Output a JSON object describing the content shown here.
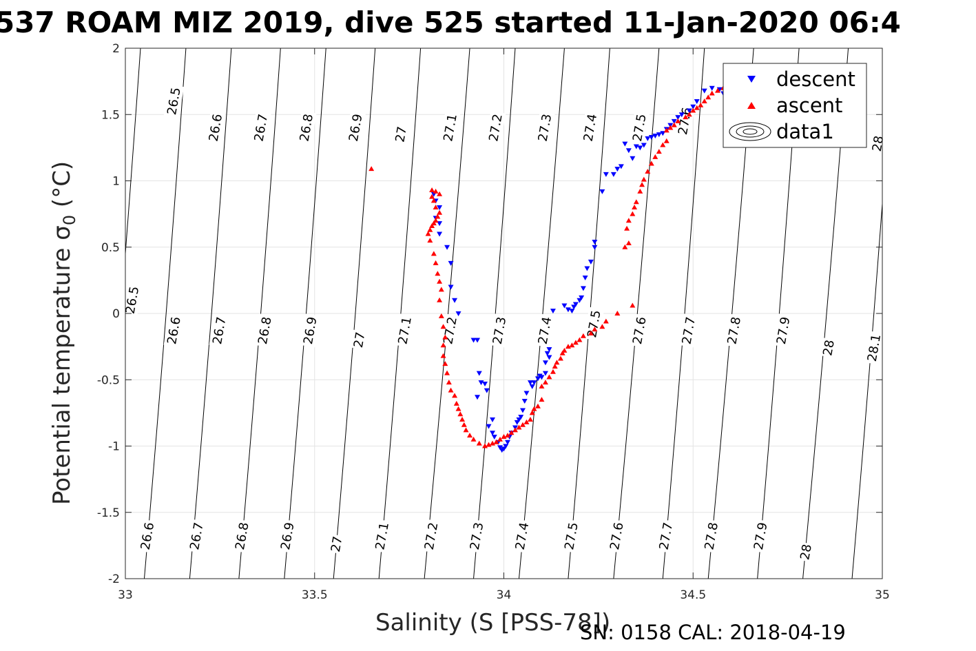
{
  "chart_data": {
    "type": "scatter",
    "title": "537 ROAM MIZ 2019, dive 525 started 11-Jan-2020 06:4",
    "xlabel": "Salinity (S [PSS-78])",
    "ylabel_main": "Potential temperature ",
    "ylabel_sigma": "σ",
    "ylabel_sub": "0",
    "ylabel_unit": " (°C)",
    "footer": "SN: 0158  CAL: 2018-04-19",
    "xlim": [
      33,
      35
    ],
    "ylim": [
      -2,
      2
    ],
    "grid": true,
    "legend_position": "top-right",
    "x_ticks": [
      {
        "value": 33,
        "label": "33"
      },
      {
        "value": 33.5,
        "label": "33.5"
      },
      {
        "value": 34,
        "label": "34"
      },
      {
        "value": 34.5,
        "label": "34.5"
      },
      {
        "value": 35,
        "label": "35"
      }
    ],
    "y_ticks": [
      {
        "value": 2,
        "label": "2"
      },
      {
        "value": 1.5,
        "label": "1.5"
      },
      {
        "value": 1,
        "label": "1"
      },
      {
        "value": 0.5,
        "label": "0.5"
      },
      {
        "value": 0,
        "label": "0"
      },
      {
        "value": -0.5,
        "label": "-0.5"
      },
      {
        "value": -1,
        "label": "-1"
      },
      {
        "value": -1.5,
        "label": "-1.5"
      },
      {
        "value": -2,
        "label": "-2"
      }
    ],
    "contours": [
      {
        "level": "26.5",
        "x_top": 33.04,
        "x_bottom": 32.93
      },
      {
        "level": "26.6",
        "x_top": 33.16,
        "x_bottom": 33.05
      },
      {
        "level": "26.7",
        "x_top": 33.28,
        "x_bottom": 33.17
      },
      {
        "level": "26.8",
        "x_top": 33.41,
        "x_bottom": 33.3
      },
      {
        "level": "26.9",
        "x_top": 33.53,
        "x_bottom": 33.42
      },
      {
        "level": "27",
        "x_top": 33.66,
        "x_bottom": 33.55
      },
      {
        "level": "27.1",
        "x_top": 33.78,
        "x_bottom": 33.67
      },
      {
        "level": "27.2",
        "x_top": 33.91,
        "x_bottom": 33.79
      },
      {
        "level": "27.3",
        "x_top": 34.03,
        "x_bottom": 33.92
      },
      {
        "level": "27.4",
        "x_top": 34.16,
        "x_bottom": 34.04
      },
      {
        "level": "27.5",
        "x_top": 34.28,
        "x_bottom": 34.17
      },
      {
        "level": "27.6",
        "x_top": 34.41,
        "x_bottom": 34.29
      },
      {
        "level": "27.7",
        "x_top": 34.53,
        "x_bottom": 34.42
      },
      {
        "level": "27.8",
        "x_top": 34.66,
        "x_bottom": 34.54
      },
      {
        "level": "27.9",
        "x_top": 34.78,
        "x_bottom": 34.67
      },
      {
        "level": "28",
        "x_top": 34.91,
        "x_bottom": 34.79
      },
      {
        "level": "28.1",
        "x_top": 35.03,
        "x_bottom": 34.92
      }
    ],
    "contour_labels": [
      {
        "text": "26.5",
        "x": 33.13,
        "y": 1.6
      },
      {
        "text": "26.6",
        "x": 33.24,
        "y": 1.4
      },
      {
        "text": "26.7",
        "x": 33.36,
        "y": 1.4
      },
      {
        "text": "26.8",
        "x": 33.48,
        "y": 1.4
      },
      {
        "text": "26.9",
        "x": 33.61,
        "y": 1.4
      },
      {
        "text": "27",
        "x": 33.73,
        "y": 1.35
      },
      {
        "text": "27.1",
        "x": 33.86,
        "y": 1.4
      },
      {
        "text": "27.2",
        "x": 33.98,
        "y": 1.4
      },
      {
        "text": "27.3",
        "x": 34.11,
        "y": 1.4
      },
      {
        "text": "27.4",
        "x": 34.23,
        "y": 1.4
      },
      {
        "text": "27.5",
        "x": 34.36,
        "y": 1.4
      },
      {
        "text": "27.6",
        "x": 34.48,
        "y": 1.45
      },
      {
        "text": "28",
        "x": 34.99,
        "y": 1.28
      },
      {
        "text": "26.5",
        "x": 33.02,
        "y": 0.1
      },
      {
        "text": "26.6",
        "x": 33.13,
        "y": -0.13
      },
      {
        "text": "26.7",
        "x": 33.25,
        "y": -0.13
      },
      {
        "text": "26.8",
        "x": 33.37,
        "y": -0.13
      },
      {
        "text": "26.9",
        "x": 33.49,
        "y": -0.13
      },
      {
        "text": "27",
        "x": 33.62,
        "y": -0.2
      },
      {
        "text": "27.1",
        "x": 33.74,
        "y": -0.13
      },
      {
        "text": "27.2",
        "x": 33.86,
        "y": -0.13
      },
      {
        "text": "27.3",
        "x": 33.99,
        "y": -0.13
      },
      {
        "text": "27.4",
        "x": 34.11,
        "y": -0.13
      },
      {
        "text": "27.5",
        "x": 34.24,
        "y": -0.08
      },
      {
        "text": "27.6",
        "x": 34.36,
        "y": -0.13
      },
      {
        "text": "27.7",
        "x": 34.49,
        "y": -0.13
      },
      {
        "text": "27.8",
        "x": 34.61,
        "y": -0.13
      },
      {
        "text": "27.9",
        "x": 34.74,
        "y": -0.13
      },
      {
        "text": "28",
        "x": 34.86,
        "y": -0.26
      },
      {
        "text": "28.1",
        "x": 34.98,
        "y": -0.26
      },
      {
        "text": "26.6",
        "x": 33.06,
        "y": -1.68
      },
      {
        "text": "26.7",
        "x": 33.19,
        "y": -1.68
      },
      {
        "text": "26.8",
        "x": 33.31,
        "y": -1.68
      },
      {
        "text": "26.9",
        "x": 33.43,
        "y": -1.68
      },
      {
        "text": "27",
        "x": 33.56,
        "y": -1.74
      },
      {
        "text": "27.1",
        "x": 33.68,
        "y": -1.68
      },
      {
        "text": "27.2",
        "x": 33.81,
        "y": -1.68
      },
      {
        "text": "27.3",
        "x": 33.93,
        "y": -1.68
      },
      {
        "text": "27.4",
        "x": 34.05,
        "y": -1.68
      },
      {
        "text": "27.5",
        "x": 34.18,
        "y": -1.68
      },
      {
        "text": "27.6",
        "x": 34.3,
        "y": -1.68
      },
      {
        "text": "27.7",
        "x": 34.43,
        "y": -1.68
      },
      {
        "text": "27.8",
        "x": 34.55,
        "y": -1.68
      },
      {
        "text": "27.9",
        "x": 34.68,
        "y": -1.68
      },
      {
        "text": "28",
        "x": 34.8,
        "y": -1.8
      }
    ],
    "legend": [
      {
        "label": "descent",
        "marker": "triangle-down",
        "color": "#0000ff"
      },
      {
        "label": "ascent",
        "marker": "triangle-up",
        "color": "#ff0000"
      },
      {
        "label": "data1",
        "marker": "contour",
        "color": "#000000"
      }
    ],
    "series": [
      {
        "name": "descent",
        "marker": "triangle-down",
        "color": "#0000ff",
        "points": [
          [
            34.59,
            1.62
          ],
          [
            34.58,
            1.66
          ],
          [
            34.57,
            1.69
          ],
          [
            34.55,
            1.7
          ],
          [
            34.53,
            1.68
          ],
          [
            34.51,
            1.6
          ],
          [
            34.5,
            1.56
          ],
          [
            34.49,
            1.53
          ],
          [
            34.47,
            1.5
          ],
          [
            34.46,
            1.48
          ],
          [
            34.45,
            1.45
          ],
          [
            34.44,
            1.42
          ],
          [
            34.43,
            1.39
          ],
          [
            34.42,
            1.36
          ],
          [
            34.41,
            1.35
          ],
          [
            34.4,
            1.34
          ],
          [
            34.39,
            1.33
          ],
          [
            34.38,
            1.32
          ],
          [
            34.37,
            1.27
          ],
          [
            34.36,
            1.25
          ],
          [
            34.35,
            1.26
          ],
          [
            34.34,
            1.17
          ],
          [
            34.33,
            1.23
          ],
          [
            34.32,
            1.28
          ],
          [
            34.31,
            1.11
          ],
          [
            34.3,
            1.09
          ],
          [
            34.29,
            1.05
          ],
          [
            34.27,
            1.05
          ],
          [
            34.26,
            0.92
          ],
          [
            34.24,
            0.54
          ],
          [
            34.24,
            0.5
          ],
          [
            34.23,
            0.39
          ],
          [
            34.22,
            0.34
          ],
          [
            34.215,
            0.27
          ],
          [
            34.21,
            0.19
          ],
          [
            34.205,
            0.12
          ],
          [
            34.2,
            0.1
          ],
          [
            34.19,
            0.07
          ],
          [
            34.185,
            0.05
          ],
          [
            34.18,
            0.02
          ],
          [
            34.17,
            0.03
          ],
          [
            34.16,
            0.06
          ],
          [
            34.13,
            0.02
          ],
          [
            34.12,
            -0.27
          ],
          [
            34.115,
            -0.3
          ],
          [
            34.12,
            -0.33
          ],
          [
            34.11,
            -0.37
          ],
          [
            34.11,
            -0.45
          ],
          [
            34.1,
            -0.48
          ],
          [
            34.095,
            -0.47
          ],
          [
            34.09,
            -0.49
          ],
          [
            34.08,
            -0.52
          ],
          [
            34.075,
            -0.55
          ],
          [
            34.07,
            -0.52
          ],
          [
            34.06,
            -0.6
          ],
          [
            34.055,
            -0.66
          ],
          [
            34.05,
            -0.73
          ],
          [
            34.045,
            -0.78
          ],
          [
            34.04,
            -0.8
          ],
          [
            34.035,
            -0.82
          ],
          [
            34.03,
            -0.86
          ],
          [
            34.02,
            -0.9
          ],
          [
            34.015,
            -0.93
          ],
          [
            34.01,
            -0.97
          ],
          [
            34.005,
            -1.0
          ],
          [
            34.0,
            -1.02
          ],
          [
            33.995,
            -1.03
          ],
          [
            33.99,
            -1.01
          ],
          [
            33.985,
            -0.97
          ],
          [
            33.975,
            -0.93
          ],
          [
            33.97,
            -0.9
          ],
          [
            33.97,
            -0.8
          ],
          [
            33.96,
            -0.85
          ],
          [
            33.955,
            -0.58
          ],
          [
            33.95,
            -0.53
          ],
          [
            33.94,
            -0.52
          ],
          [
            33.93,
            -0.63
          ],
          [
            33.935,
            -0.45
          ],
          [
            33.92,
            -0.2
          ],
          [
            33.93,
            -0.2
          ],
          [
            33.88,
            0.0
          ],
          [
            33.87,
            0.1
          ],
          [
            33.86,
            0.2
          ],
          [
            33.86,
            0.38
          ],
          [
            33.85,
            0.5
          ],
          [
            33.83,
            0.6
          ],
          [
            33.83,
            0.68
          ],
          [
            33.82,
            0.72
          ],
          [
            33.83,
            0.8
          ],
          [
            33.82,
            0.85
          ],
          [
            33.815,
            0.9
          ]
        ]
      },
      {
        "name": "ascent",
        "marker": "triangle-up",
        "color": "#ff0000",
        "points": [
          [
            34.58,
            1.7
          ],
          [
            34.565,
            1.68
          ],
          [
            34.55,
            1.66
          ],
          [
            34.54,
            1.63
          ],
          [
            34.53,
            1.6
          ],
          [
            34.52,
            1.57
          ],
          [
            34.51,
            1.55
          ],
          [
            34.5,
            1.53
          ],
          [
            34.49,
            1.5
          ],
          [
            34.48,
            1.48
          ],
          [
            34.46,
            1.45
          ],
          [
            34.45,
            1.42
          ],
          [
            34.44,
            1.4
          ],
          [
            34.43,
            1.38
          ],
          [
            34.43,
            1.3
          ],
          [
            34.42,
            1.27
          ],
          [
            34.41,
            1.22
          ],
          [
            34.4,
            1.18
          ],
          [
            34.39,
            1.13
          ],
          [
            34.38,
            1.07
          ],
          [
            34.37,
            1.01
          ],
          [
            34.365,
            0.97
          ],
          [
            34.36,
            0.92
          ],
          [
            34.35,
            0.84
          ],
          [
            34.345,
            0.8
          ],
          [
            34.34,
            0.75
          ],
          [
            34.33,
            0.7
          ],
          [
            34.325,
            0.64
          ],
          [
            34.32,
            0.5
          ],
          [
            34.33,
            0.53
          ],
          [
            34.34,
            0.06
          ],
          [
            34.3,
            0.0
          ],
          [
            34.27,
            -0.06
          ],
          [
            34.26,
            -0.1
          ],
          [
            34.24,
            -0.12
          ],
          [
            34.23,
            -0.15
          ],
          [
            34.21,
            -0.17
          ],
          [
            34.2,
            -0.2
          ],
          [
            34.19,
            -0.22
          ],
          [
            34.18,
            -0.24
          ],
          [
            34.17,
            -0.25
          ],
          [
            34.16,
            -0.28
          ],
          [
            34.155,
            -0.3
          ],
          [
            34.15,
            -0.34
          ],
          [
            34.14,
            -0.37
          ],
          [
            34.135,
            -0.4
          ],
          [
            34.13,
            -0.44
          ],
          [
            34.12,
            -0.48
          ],
          [
            34.11,
            -0.52
          ],
          [
            34.1,
            -0.55
          ],
          [
            34.1,
            -0.65
          ],
          [
            34.09,
            -0.7
          ],
          [
            34.08,
            -0.72
          ],
          [
            34.075,
            -0.75
          ],
          [
            34.07,
            -0.8
          ],
          [
            34.06,
            -0.82
          ],
          [
            34.05,
            -0.84
          ],
          [
            34.04,
            -0.86
          ],
          [
            34.03,
            -0.88
          ],
          [
            34.02,
            -0.9
          ],
          [
            34.01,
            -0.92
          ],
          [
            34.0,
            -0.93
          ],
          [
            33.99,
            -0.95
          ],
          [
            33.98,
            -0.97
          ],
          [
            33.97,
            -0.98
          ],
          [
            33.96,
            -0.99
          ],
          [
            33.95,
            -1.0
          ],
          [
            33.935,
            -0.98
          ],
          [
            33.92,
            -0.95
          ],
          [
            33.91,
            -0.92
          ],
          [
            33.9,
            -0.88
          ],
          [
            33.895,
            -0.84
          ],
          [
            33.89,
            -0.8
          ],
          [
            33.885,
            -0.76
          ],
          [
            33.88,
            -0.72
          ],
          [
            33.875,
            -0.68
          ],
          [
            33.87,
            -0.62
          ],
          [
            33.86,
            -0.58
          ],
          [
            33.855,
            -0.52
          ],
          [
            33.85,
            -0.45
          ],
          [
            33.845,
            -0.38
          ],
          [
            33.84,
            -0.32
          ],
          [
            33.84,
            -0.24
          ],
          [
            33.845,
            -0.18
          ],
          [
            33.84,
            -0.1
          ],
          [
            33.835,
            -0.02
          ],
          [
            33.83,
            0.1
          ],
          [
            33.835,
            0.18
          ],
          [
            33.83,
            0.24
          ],
          [
            33.825,
            0.3
          ],
          [
            33.82,
            0.38
          ],
          [
            33.815,
            0.45
          ],
          [
            33.805,
            0.55
          ],
          [
            33.8,
            0.6
          ],
          [
            33.805,
            0.63
          ],
          [
            33.81,
            0.66
          ],
          [
            33.815,
            0.68
          ],
          [
            33.82,
            0.7
          ],
          [
            33.825,
            0.73
          ],
          [
            33.83,
            0.76
          ],
          [
            33.82,
            0.8
          ],
          [
            33.815,
            0.85
          ],
          [
            33.81,
            0.88
          ],
          [
            33.81,
            0.93
          ],
          [
            33.82,
            0.92
          ],
          [
            33.83,
            0.9
          ],
          [
            33.65,
            1.09
          ]
        ]
      }
    ]
  }
}
